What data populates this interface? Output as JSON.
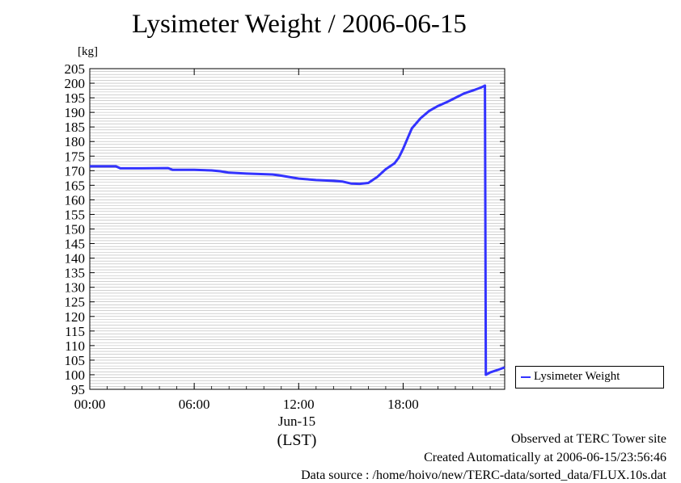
{
  "page": {
    "title": "Lysimeter Weight / 2006-06-15",
    "unit_label": "[kg]",
    "footer": {
      "line1": "Observed at TERC Tower site",
      "line2": "Created Automatically at 2006-06-15/23:56:46",
      "line3": "Data source : /home/hoivo/new/TERC-data/sorted_data/FLUX.10s.dat"
    }
  },
  "chart_data": {
    "type": "line",
    "title": "Lysimeter Weight / 2006-06-15",
    "ylabel": "[kg]",
    "xlabel": "(LST)",
    "date_label": "Jun-15",
    "ylim": [
      95,
      205
    ],
    "yticks": [
      95,
      100,
      105,
      110,
      115,
      120,
      125,
      130,
      135,
      140,
      145,
      150,
      155,
      160,
      165,
      170,
      175,
      180,
      185,
      190,
      195,
      200,
      205
    ],
    "xlim": [
      "00:00",
      "23:50"
    ],
    "xticks": [
      {
        "value": "00:00",
        "label": "00:00"
      },
      {
        "value": "06:00",
        "label": "06:00"
      },
      {
        "value": "12:00",
        "label": "12:00"
      },
      {
        "value": "18:00",
        "label": "18:00"
      }
    ],
    "grid": true,
    "legend_position": "right-bottom",
    "colors": {
      "series": "#3333ff"
    },
    "series": [
      {
        "name": "Lysimeter Weight",
        "x": [
          "00:00",
          "01:30",
          "01:45",
          "03:00",
          "04:30",
          "04:45",
          "06:00",
          "07:00",
          "07:30",
          "08:00",
          "09:00",
          "10:30",
          "11:00",
          "12:00",
          "13:00",
          "14:00",
          "14:30",
          "15:00",
          "15:30",
          "16:00",
          "16:30",
          "17:00",
          "17:30",
          "17:45",
          "18:00",
          "18:15",
          "18:30",
          "19:00",
          "19:30",
          "20:00",
          "20:30",
          "21:00",
          "21:30",
          "22:00",
          "22:30",
          "22:42",
          "22:45",
          "23:00",
          "23:30",
          "23:50"
        ],
        "values": [
          171.5,
          171.5,
          170.8,
          170.8,
          170.9,
          170.3,
          170.3,
          170.1,
          169.8,
          169.3,
          169.0,
          168.7,
          168.3,
          167.3,
          166.8,
          166.5,
          166.3,
          165.6,
          165.5,
          165.8,
          167.8,
          170.5,
          172.5,
          174.5,
          177.5,
          181.0,
          184.5,
          188.0,
          190.5,
          192.2,
          193.5,
          195.0,
          196.5,
          197.5,
          198.6,
          199.2,
          100.0,
          100.8,
          101.8,
          102.5
        ]
      }
    ]
  }
}
